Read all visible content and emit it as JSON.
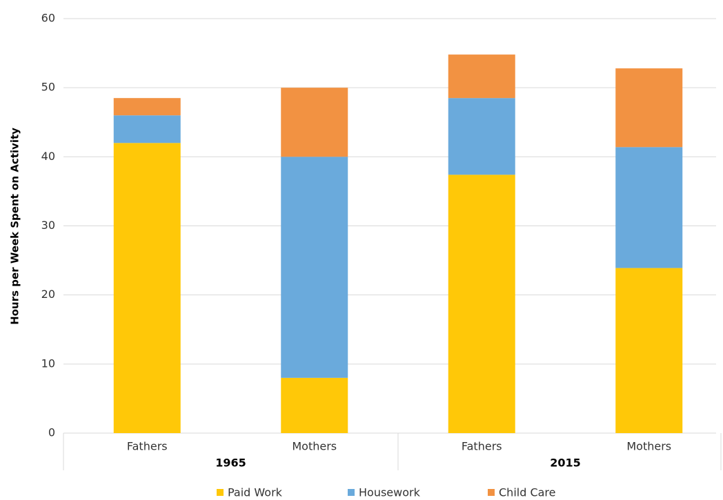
{
  "chart_data": {
    "type": "stacked_bar",
    "y_label": "Hours per Week Spent on Activity",
    "groups": [
      {
        "name": "1965",
        "categories": [
          "Fathers",
          "Mothers"
        ]
      },
      {
        "name": "2015",
        "categories": [
          "Fathers",
          "Mothers"
        ]
      }
    ],
    "series": [
      {
        "name": "Paid Work",
        "color": "#ffc808",
        "values": [
          42,
          8,
          37.4,
          23.9
        ]
      },
      {
        "name": "Housework",
        "color": "#6aaadc",
        "values": [
          4,
          32,
          11.1,
          17.5
        ]
      },
      {
        "name": "Child Care",
        "color": "#f29242",
        "values": [
          2.5,
          10,
          6.3,
          11.4
        ]
      }
    ],
    "ylim": [
      0,
      60
    ],
    "yticks": [
      0,
      10,
      20,
      30,
      40,
      50,
      60
    ],
    "grid": true
  }
}
